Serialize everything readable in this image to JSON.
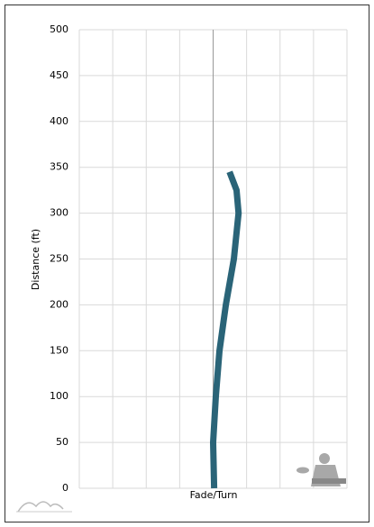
{
  "chart_data": {
    "type": "line",
    "x_label": "Fade/Turn",
    "y_label": "Distance (ft)",
    "x": [
      0.03,
      0.0,
      0.08,
      0.19,
      0.38,
      0.62,
      0.76,
      0.7,
      0.49
    ],
    "series": [
      {
        "color": "#2a6478",
        "values": [
          0,
          50,
          100,
          150,
          200,
          250,
          300,
          325,
          345
        ]
      }
    ],
    "xlim": [
      -4,
      4
    ],
    "xticks": [
      -4,
      -3,
      -2,
      -1,
      0,
      1,
      2,
      3,
      4
    ],
    "ylim": [
      0,
      500
    ],
    "yticks": [
      0,
      50,
      100,
      150,
      200,
      250,
      300,
      350,
      400,
      450,
      500
    ],
    "grid": true
  }
}
